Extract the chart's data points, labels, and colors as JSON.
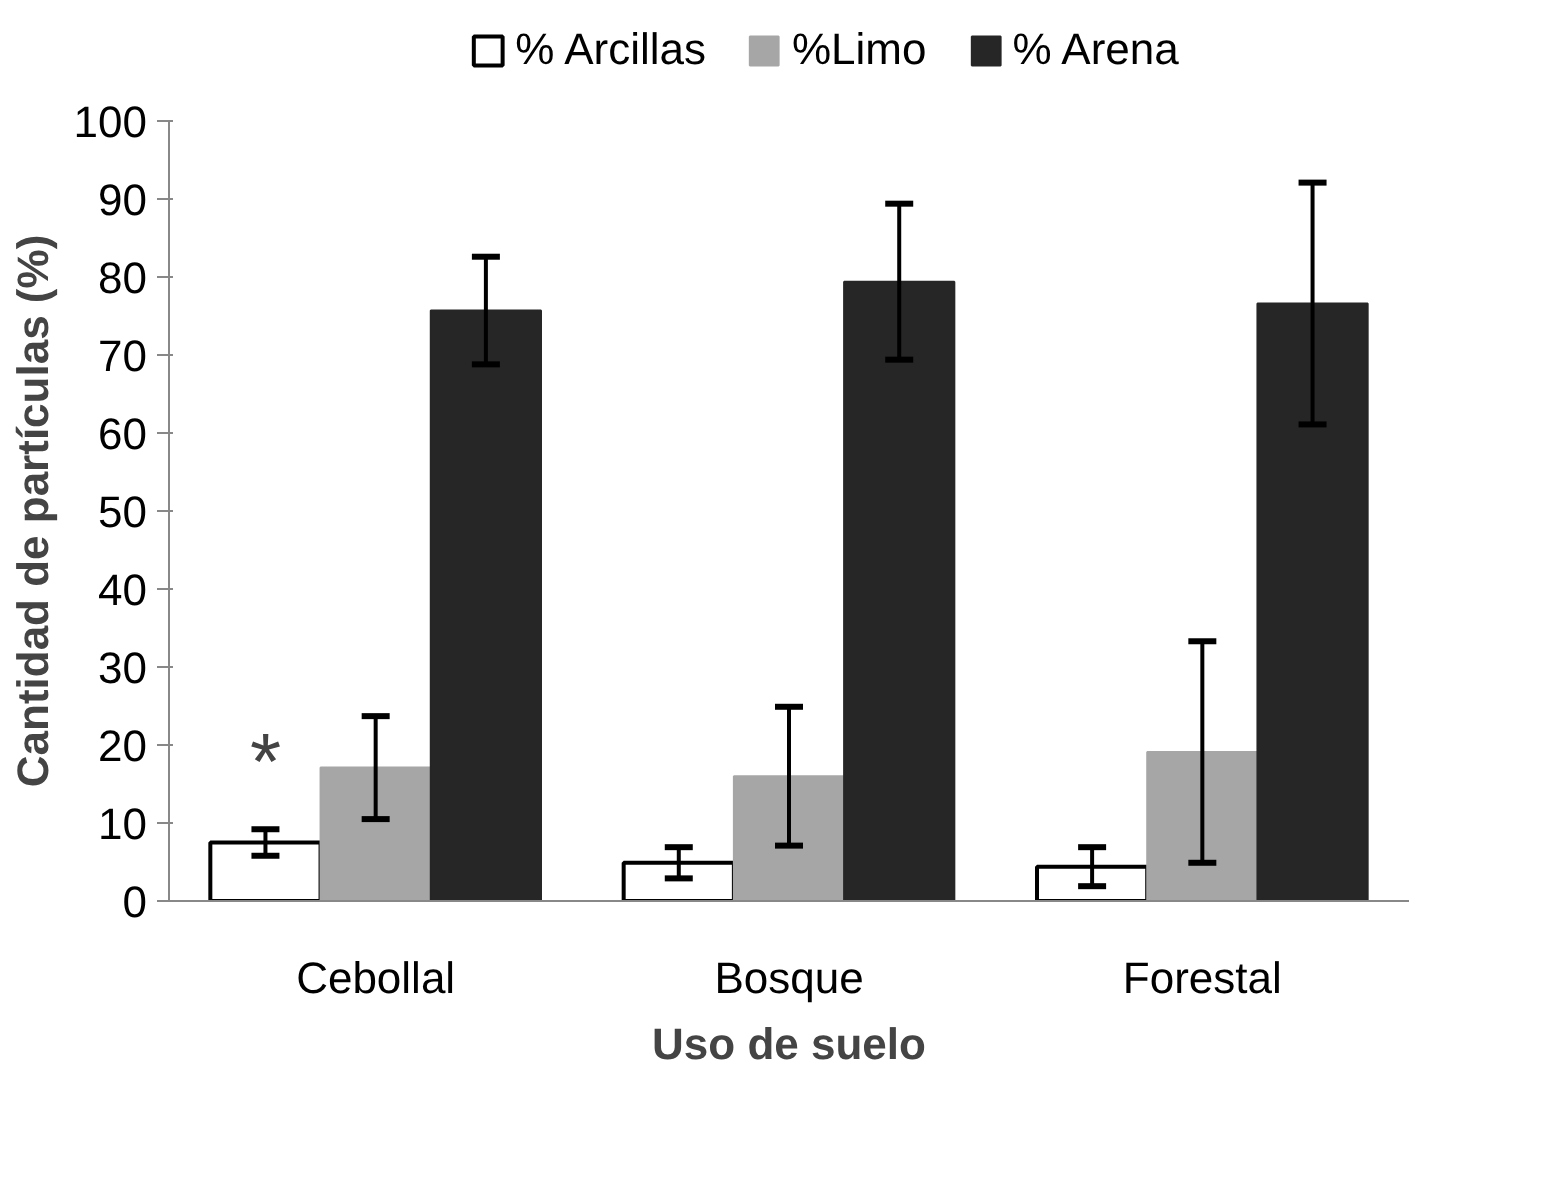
{
  "chart_data": {
    "type": "bar",
    "xlabel": "Uso de suelo",
    "ylabel": "Cantidad de partículas (%)",
    "categories": [
      "Cebollal",
      "Bosque",
      "Forestal"
    ],
    "series": [
      {
        "name": "% Arcillas",
        "color": "#ffffff",
        "values": [
          7.5,
          4.9,
          4.4
        ],
        "errors": [
          1.7,
          2.0,
          2.5
        ]
      },
      {
        "name": "%Limo",
        "color": "#a6a6a6",
        "values": [
          17.1,
          16.0,
          19.1
        ],
        "errors": [
          6.6,
          8.9,
          14.2
        ]
      },
      {
        "name": "% Arena",
        "color": "#262626",
        "values": [
          75.7,
          79.4,
          76.6
        ],
        "errors": [
          6.9,
          10.0,
          15.5
        ]
      }
    ],
    "ylim": [
      0,
      100
    ],
    "yticks": [
      0,
      10,
      20,
      30,
      40,
      50,
      60,
      70,
      80,
      90,
      100
    ],
    "annotations": [
      {
        "text": "*",
        "x": "Cebollal",
        "y": 12
      }
    ],
    "grid": false,
    "legend": "top"
  }
}
